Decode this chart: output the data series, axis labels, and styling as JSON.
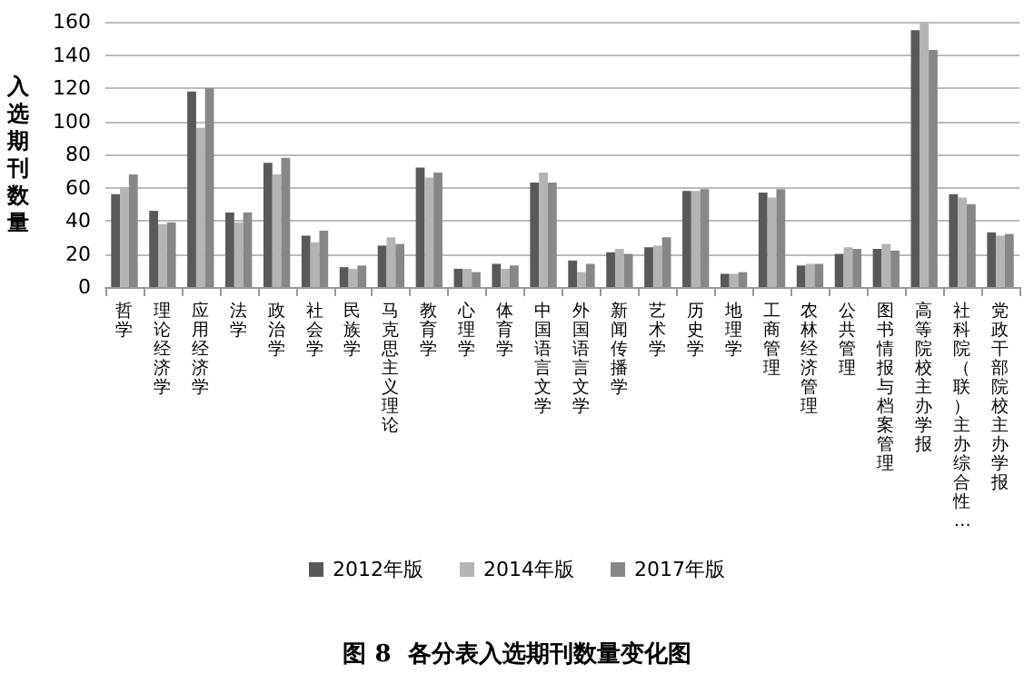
{
  "chart_data": {
    "type": "bar",
    "title": "图 8  各分表入选期刊数量变化图",
    "ylabel": "入选期刊数量",
    "categories": [
      "哲学",
      "理论经济学",
      "应用经济学",
      "法学",
      "政治学",
      "社会学",
      "民族学",
      "马克思主义理论",
      "教育学",
      "心理学",
      "体育学",
      "中国语言文学",
      "外国语言文学",
      "新闻传播学",
      "艺术学",
      "历史学",
      "地理学",
      "工商管理",
      "农林经济管理",
      "公共管理",
      "图书情报与档案管理",
      "高等院校主办学报",
      "社科院（联）主办综合性…",
      "党政干部院校主办学报"
    ],
    "series": [
      {
        "name": "2012年版",
        "color": "#595959",
        "values": [
          56,
          46,
          118,
          45,
          75,
          31,
          12,
          25,
          72,
          11,
          14,
          63,
          16,
          21,
          24,
          58,
          8,
          57,
          13,
          20,
          23,
          155,
          56,
          33
        ]
      },
      {
        "name": "2014年版",
        "color": "#b4b4b4",
        "values": [
          60,
          38,
          96,
          39,
          68,
          27,
          11,
          30,
          66,
          11,
          11,
          69,
          9,
          23,
          25,
          58,
          8,
          54,
          14,
          24,
          26,
          159,
          54,
          31
        ]
      },
      {
        "name": "2017年版",
        "color": "#878787",
        "values": [
          68,
          39,
          120,
          45,
          78,
          34,
          13,
          26,
          69,
          9,
          13,
          63,
          14,
          20,
          30,
          59,
          9,
          59,
          14,
          23,
          22,
          143,
          50,
          32
        ]
      }
    ],
    "ylim": [
      0,
      160
    ],
    "yticks": [
      0,
      20,
      40,
      60,
      80,
      100,
      120,
      140,
      160
    ],
    "grid": "y",
    "legend": "bottom"
  }
}
